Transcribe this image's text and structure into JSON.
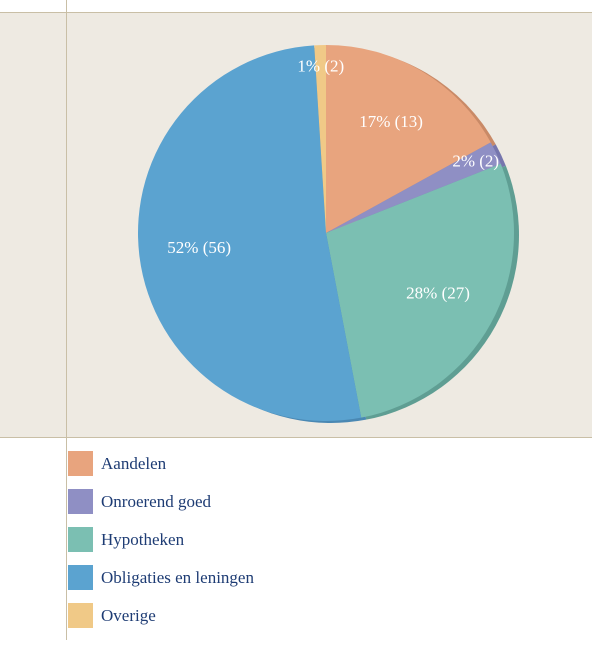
{
  "chart_data": {
    "type": "pie",
    "categories": [
      "Aandelen",
      "Onroerend goed",
      "Hypotheken",
      "Obligaties en leningen",
      "Overige"
    ],
    "values": [
      17,
      2,
      28,
      52,
      1
    ],
    "value_labels": [
      "17% (13)",
      "2% (2)",
      "28% (27)",
      "52% (56)",
      "1% (2)"
    ],
    "colors": [
      "#e8a47e",
      "#8f8fc4",
      "#7bbfb2",
      "#5ba3d0",
      "#f0c987"
    ],
    "edge_colors": [
      "#c98a67",
      "#7676ad",
      "#5f9e93",
      "#4a88b3",
      "#d8ad6c"
    ]
  }
}
